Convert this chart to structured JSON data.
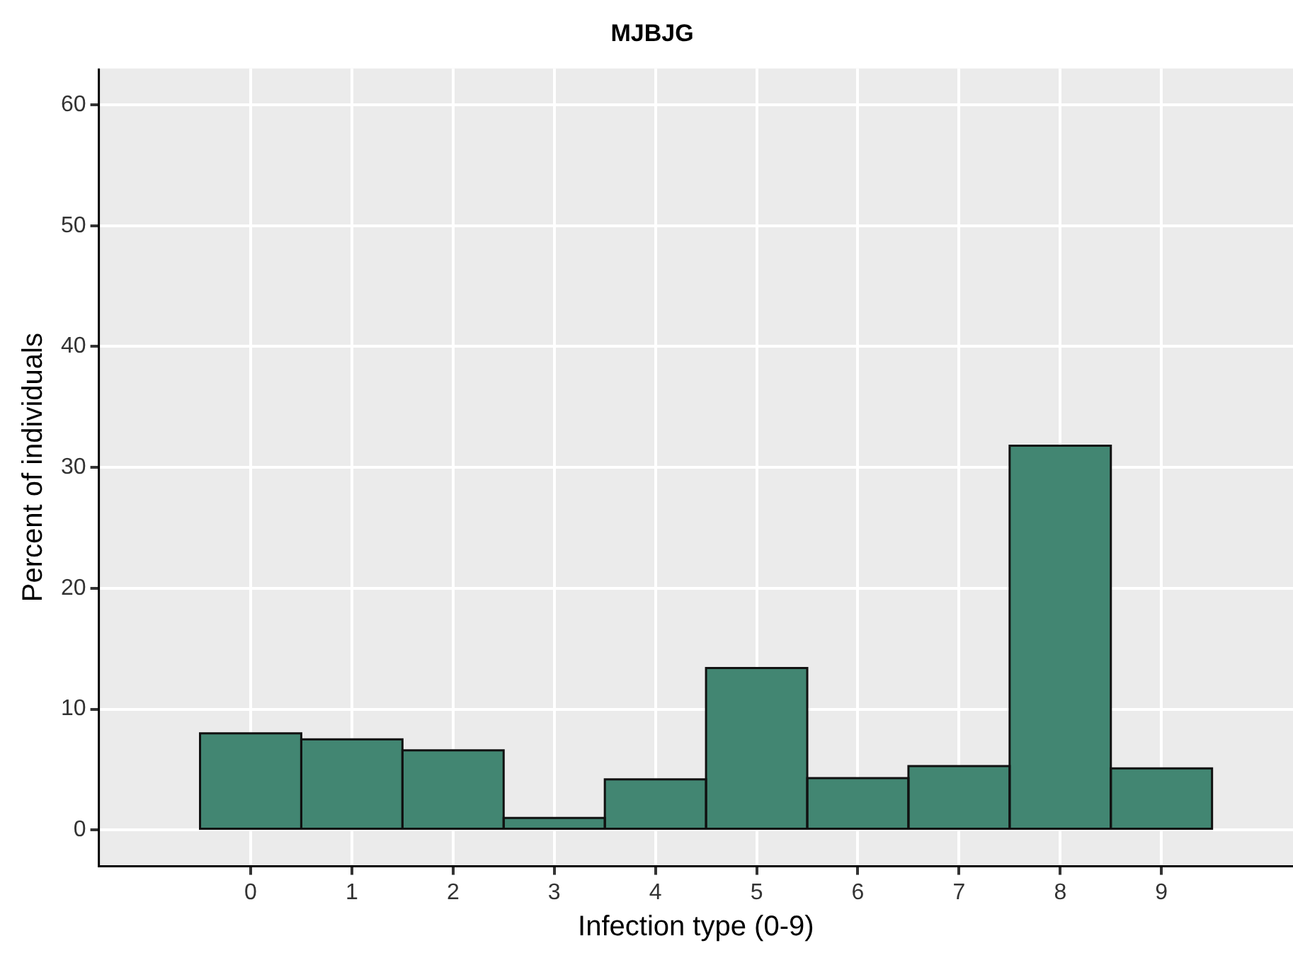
{
  "chart_data": {
    "type": "histogram",
    "title": "MJBJG",
    "xlabel": "Infection type (0-9)",
    "ylabel": "Percent of individuals",
    "bins": [
      -0.5,
      0.5,
      1.5,
      2.5,
      3.5,
      4.5,
      5.5,
      6.5,
      7.5,
      8.5,
      9.5
    ],
    "values": [
      8.0,
      7.5,
      6.6,
      1.0,
      4.2,
      13.4,
      4.3,
      5.3,
      31.8,
      5.1
    ],
    "color": "#428672",
    "xlim": [
      -1.5,
      10.3
    ],
    "xticks": [
      0,
      1,
      2,
      3,
      4,
      5,
      6,
      7,
      8,
      9
    ],
    "ylim": [
      -3,
      63
    ],
    "yticks": [
      0,
      10,
      20,
      30,
      40,
      50,
      60
    ],
    "grid": true,
    "legend": false
  }
}
